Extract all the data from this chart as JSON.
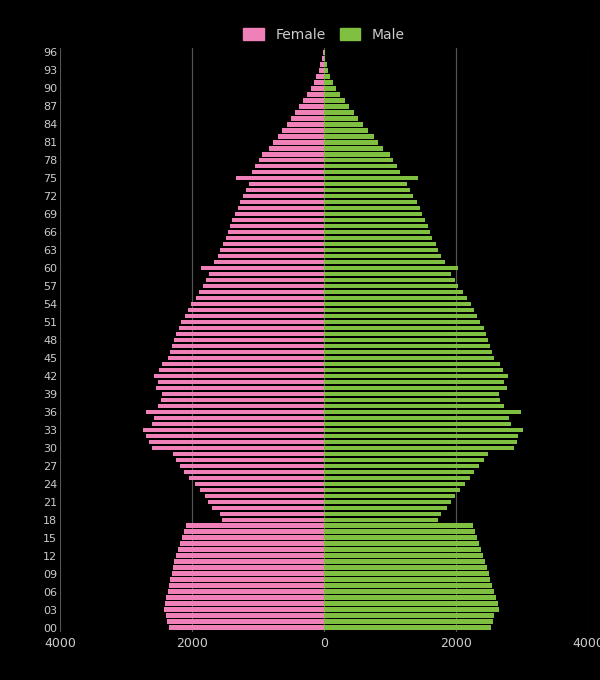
{
  "female_color": "#f080b8",
  "male_color": "#80c040",
  "background_color": "#000000",
  "text_color": "#cccccc",
  "grid_color": "#555555",
  "xlim": [
    -4000,
    4000
  ],
  "xlabel_ticks": [
    -4000,
    -2000,
    0,
    2000,
    4000
  ],
  "ages": [
    0,
    1,
    2,
    3,
    4,
    5,
    6,
    7,
    8,
    9,
    10,
    11,
    12,
    13,
    14,
    15,
    16,
    17,
    18,
    19,
    20,
    21,
    22,
    23,
    24,
    25,
    26,
    27,
    28,
    29,
    30,
    31,
    32,
    33,
    34,
    35,
    36,
    37,
    38,
    39,
    40,
    41,
    42,
    43,
    44,
    45,
    46,
    47,
    48,
    49,
    50,
    51,
    52,
    53,
    54,
    55,
    56,
    57,
    58,
    59,
    60,
    61,
    62,
    63,
    64,
    65,
    66,
    67,
    68,
    69,
    70,
    71,
    72,
    73,
    74,
    75,
    76,
    77,
    78,
    79,
    80,
    81,
    82,
    83,
    84,
    85,
    86,
    87,
    88,
    89,
    90,
    91,
    92,
    93,
    94,
    95,
    96
  ],
  "female": [
    2350,
    2380,
    2400,
    2420,
    2410,
    2390,
    2370,
    2350,
    2330,
    2310,
    2290,
    2270,
    2240,
    2210,
    2180,
    2150,
    2120,
    2090,
    1550,
    1580,
    1700,
    1760,
    1810,
    1880,
    1960,
    2040,
    2120,
    2180,
    2240,
    2290,
    2600,
    2650,
    2700,
    2750,
    2600,
    2580,
    2700,
    2520,
    2470,
    2450,
    2550,
    2510,
    2570,
    2500,
    2460,
    2360,
    2340,
    2310,
    2280,
    2250,
    2200,
    2160,
    2100,
    2060,
    2010,
    1940,
    1900,
    1840,
    1790,
    1750,
    1870,
    1660,
    1610,
    1570,
    1530,
    1490,
    1460,
    1420,
    1390,
    1350,
    1310,
    1270,
    1220,
    1180,
    1140,
    1330,
    1090,
    1040,
    990,
    940,
    840,
    770,
    700,
    630,
    560,
    500,
    440,
    380,
    320,
    260,
    200,
    155,
    115,
    82,
    58,
    34,
    14
  ],
  "male": [
    2530,
    2560,
    2580,
    2650,
    2630,
    2600,
    2580,
    2550,
    2520,
    2500,
    2470,
    2440,
    2410,
    2380,
    2350,
    2320,
    2290,
    2260,
    1720,
    1770,
    1870,
    1930,
    1990,
    2060,
    2140,
    2210,
    2280,
    2350,
    2420,
    2490,
    2880,
    2930,
    2940,
    3020,
    2830,
    2800,
    2980,
    2720,
    2670,
    2650,
    2770,
    2720,
    2790,
    2710,
    2670,
    2570,
    2550,
    2520,
    2490,
    2460,
    2420,
    2370,
    2320,
    2270,
    2220,
    2160,
    2110,
    2030,
    1980,
    1930,
    2030,
    1830,
    1780,
    1730,
    1690,
    1640,
    1610,
    1570,
    1530,
    1490,
    1460,
    1410,
    1350,
    1300,
    1250,
    1420,
    1150,
    1110,
    1050,
    1000,
    890,
    820,
    750,
    670,
    590,
    520,
    450,
    385,
    315,
    245,
    188,
    138,
    98,
    65,
    43,
    21,
    8
  ]
}
